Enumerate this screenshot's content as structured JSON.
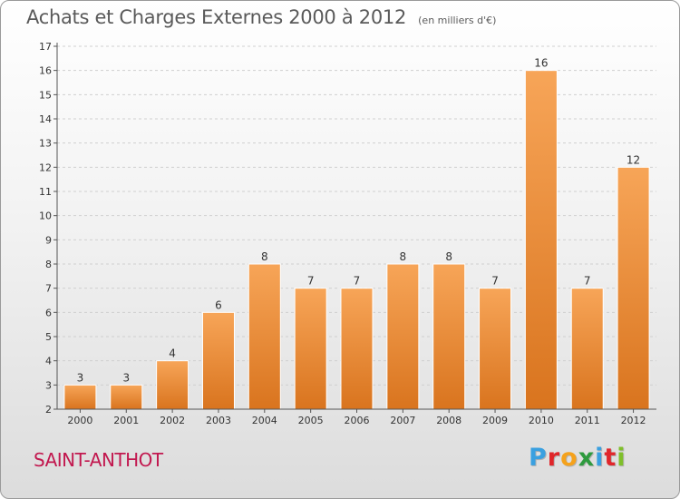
{
  "header": {
    "title": "Achats et Charges Externes 2000 à 2012",
    "subtitle": "(en milliers d'€)"
  },
  "footer": {
    "commune": "SAINT-ANTHOT",
    "logo": "Proxiti",
    "logo_colors": [
      "#3aa0e0",
      "#e0262a",
      "#f5a21b",
      "#2e9a3e",
      "#3aa0e0",
      "#e0262a",
      "#7fbf2a"
    ]
  },
  "colors": {
    "bar_light": "#f7a558",
    "bar_dark": "#d9741e",
    "grid": "#cfcfcf",
    "axis": "#555555"
  },
  "chart_data": {
    "type": "bar",
    "title": "Achats et Charges Externes 2000 à 2012",
    "subtitle": "(en milliers d'€)",
    "categories": [
      "2000",
      "2001",
      "2002",
      "2003",
      "2004",
      "2005",
      "2006",
      "2007",
      "2008",
      "2009",
      "2010",
      "2011",
      "2012"
    ],
    "values": [
      3,
      3,
      4,
      6,
      8,
      7,
      7,
      8,
      8,
      7,
      16,
      7,
      12
    ],
    "ylim": [
      2,
      17
    ],
    "yticks": [
      2,
      3,
      4,
      5,
      6,
      7,
      8,
      9,
      10,
      11,
      12,
      13,
      14,
      15,
      16,
      17
    ],
    "grid": true,
    "xlabel": "",
    "ylabel": ""
  }
}
